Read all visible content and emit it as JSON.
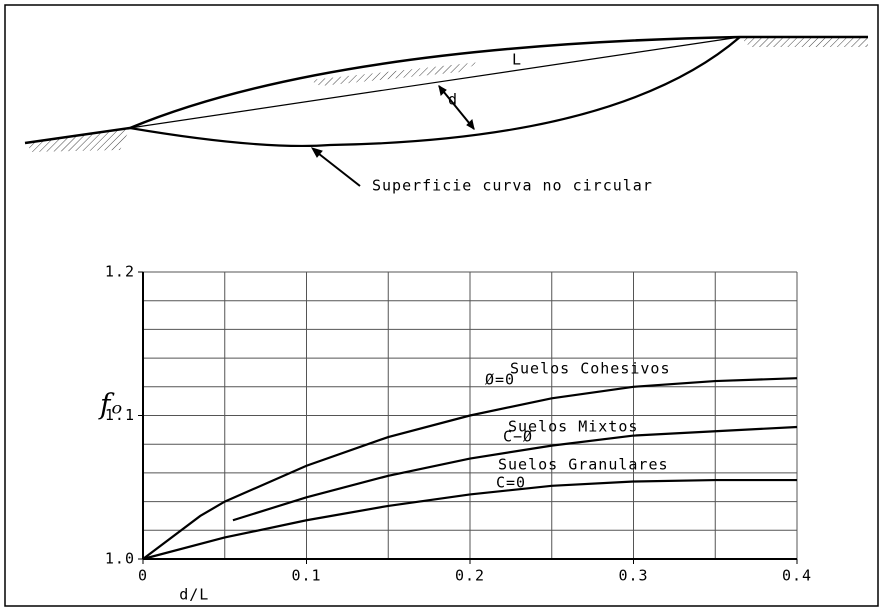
{
  "diagram": {
    "chord_label": "L",
    "depth_label": "d",
    "surface_label": "Superficie curva no circular"
  },
  "chart_data": {
    "type": "line",
    "x_label": "d/L",
    "y_label": "fₒ",
    "xlim": [
      0,
      0.4
    ],
    "ylim": [
      1.0,
      1.2
    ],
    "xticks": [
      0,
      0.1,
      0.2,
      0.3,
      0.4
    ],
    "yticks": [
      {
        "value": 1.0,
        "label": "1.0"
      },
      {
        "value": 1.1,
        "label": "1.1"
      },
      {
        "value": 1.2,
        "label": "1.2"
      }
    ],
    "xgrid": [
      0.05,
      0.1,
      0.15,
      0.2,
      0.25,
      0.3,
      0.35,
      0.4
    ],
    "ygrid": [
      1.02,
      1.04,
      1.06,
      1.08,
      1.1,
      1.12,
      1.14,
      1.16,
      1.18,
      1.2
    ],
    "grid": true,
    "series": [
      {
        "name": "Suelos Cohesivos",
        "note": "Ø=0",
        "color": "#000000",
        "x": [
          0,
          0.035,
          0.05,
          0.1,
          0.15,
          0.2,
          0.25,
          0.3,
          0.35,
          0.4
        ],
        "values": [
          1.0,
          1.03,
          1.04,
          1.065,
          1.085,
          1.1,
          1.112,
          1.12,
          1.124,
          1.126
        ]
      },
      {
        "name": "Suelos Mixtos",
        "note": "C−Ø",
        "color": "#000000",
        "x": [
          0.055,
          0.1,
          0.15,
          0.2,
          0.25,
          0.3,
          0.35,
          0.4
        ],
        "values": [
          1.027,
          1.043,
          1.058,
          1.07,
          1.079,
          1.086,
          1.089,
          1.092
        ]
      },
      {
        "name": "Suelos Granulares",
        "note": "C=0",
        "color": "#000000",
        "x": [
          0,
          0.05,
          0.1,
          0.15,
          0.2,
          0.25,
          0.3,
          0.35,
          0.4
        ],
        "values": [
          1.0,
          1.015,
          1.027,
          1.037,
          1.045,
          1.051,
          1.054,
          1.055,
          1.055
        ]
      }
    ]
  }
}
